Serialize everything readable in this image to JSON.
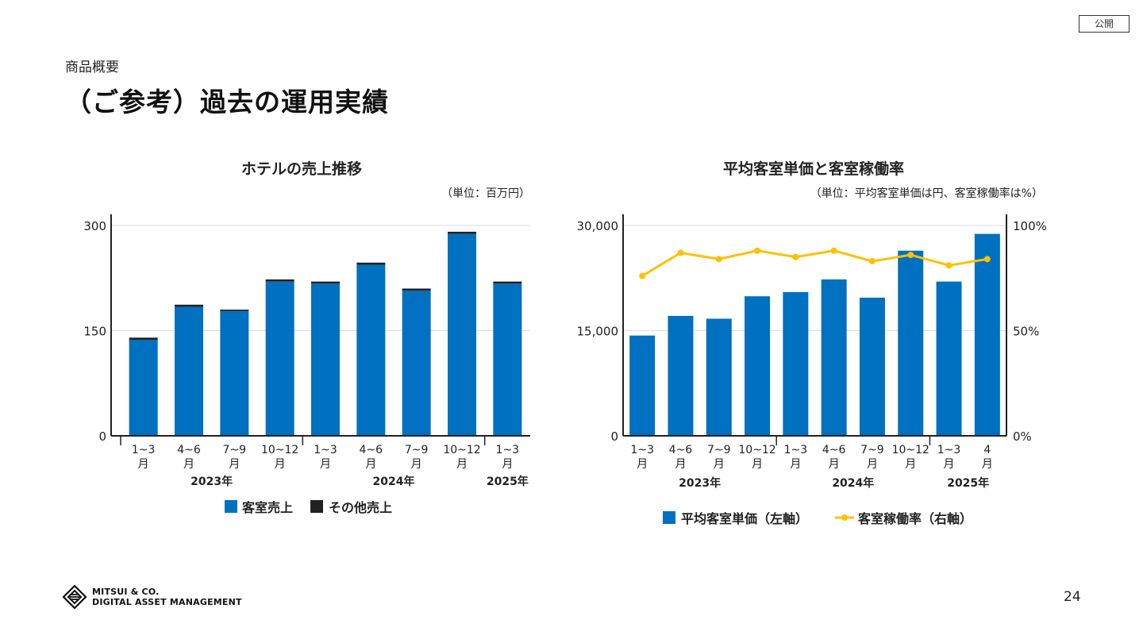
{
  "badge": "公開",
  "section": "商品概要",
  "title": "（ご参考）過去の運用実績",
  "page_number": "24",
  "logo": {
    "line1": "MITSUI & CO.",
    "line2": "DIGITAL ASSET MANAGEMENT"
  },
  "colors": {
    "bar": "#0070C0",
    "other": "#222222",
    "line": "#FFC000",
    "grid": "#dddddd"
  },
  "chart_data": [
    {
      "type": "bar",
      "title": "ホテルの売上推移",
      "unit": "（単位：百万円）",
      "stacked": true,
      "categories": [
        "1~3\n月",
        "4~6\n月",
        "7~9\n月",
        "10~12\n月",
        "1~3\n月",
        "4~6\n月",
        "7~9\n月",
        "10~12\n月",
        "1~3\n月"
      ],
      "groups": [
        {
          "label": "2023年",
          "span": [
            0,
            3
          ]
        },
        {
          "label": "2024年",
          "span": [
            4,
            7
          ]
        },
        {
          "label": "2025年",
          "span": [
            8,
            8
          ]
        }
      ],
      "series": [
        {
          "name": "客室売上",
          "values": [
            137,
            184,
            178,
            220,
            217,
            244,
            207,
            288,
            217
          ]
        },
        {
          "name": "その他売上",
          "values": [
            3,
            3,
            2,
            3,
            3,
            3,
            3,
            3,
            3
          ]
        }
      ],
      "ylim": [
        0,
        300
      ],
      "yticks": [
        "0",
        "150",
        "300"
      ],
      "legend": [
        "客室売上",
        "その他売上"
      ]
    },
    {
      "type": "bar+line",
      "title": "平均客室単価と客室稼働率",
      "unit": "（単位：平均客室単価は円、客室稼働率は%）",
      "categories": [
        "1~3\n月",
        "4~6\n月",
        "7~9\n月",
        "10~12\n月",
        "1~3\n月",
        "4~6\n月",
        "7~9\n月",
        "10~12\n月",
        "1~3\n月",
        "4\n月"
      ],
      "groups": [
        {
          "label": "2023年",
          "span": [
            0,
            3
          ]
        },
        {
          "label": "2024年",
          "span": [
            4,
            7
          ]
        },
        {
          "label": "2025年",
          "span": [
            8,
            9
          ]
        }
      ],
      "series": [
        {
          "name": "平均客室単価（左軸）",
          "axis": "left",
          "values": [
            14300,
            17100,
            16700,
            19900,
            20500,
            22300,
            19700,
            26400,
            22000,
            28800
          ]
        },
        {
          "name": "客室稼働率（右軸）",
          "axis": "right",
          "values": [
            76,
            87,
            84,
            88,
            85,
            88,
            83,
            86,
            81,
            84
          ]
        }
      ],
      "ylim_left": [
        0,
        30000
      ],
      "ylim_right": [
        0,
        100
      ],
      "yticks_left": [
        "0",
        "15,000",
        "30,000"
      ],
      "yticks_right": [
        "0%",
        "50%",
        "100%"
      ],
      "legend": [
        "平均客室単価（左軸）",
        "客室稼働率（右軸）"
      ]
    }
  ]
}
